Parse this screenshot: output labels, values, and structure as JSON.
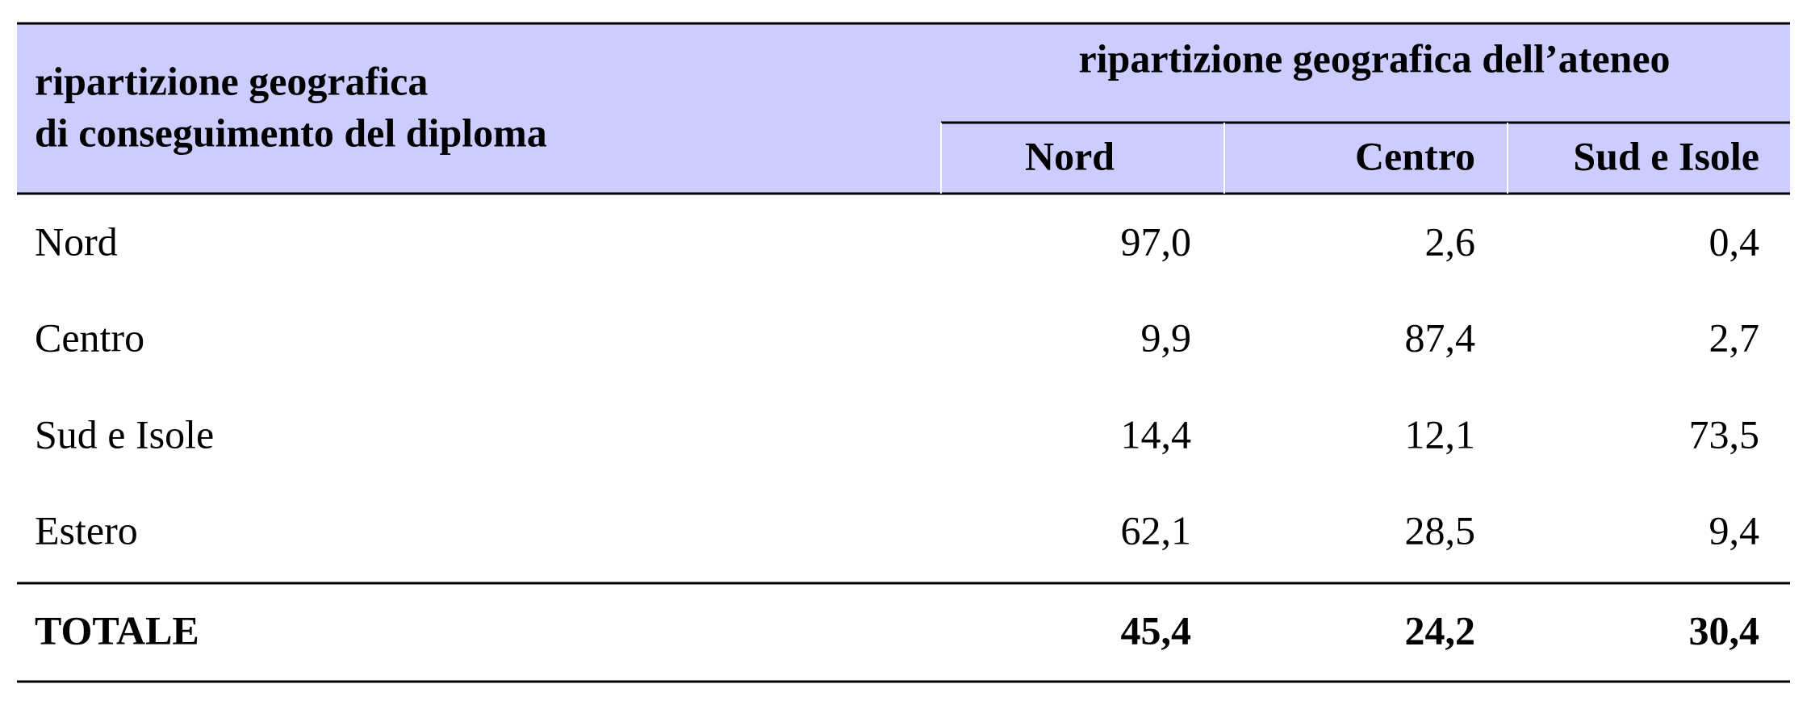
{
  "table": {
    "header": {
      "stub": [
        "ripartizione geografica",
        "di conseguimento del diploma"
      ],
      "group": "ripartizione geografica dell’ateneo",
      "columns": [
        "Nord",
        "Centro",
        "Sud e Isole"
      ]
    },
    "rows": [
      [
        "Nord",
        "97,0",
        "2,6",
        "0,4"
      ],
      [
        "Centro",
        "9,9",
        "87,4",
        "2,7"
      ],
      [
        "Sud e Isole",
        "14,4",
        "12,1",
        "73,5"
      ],
      [
        "Estero",
        "62,1",
        "28,5",
        "9,4"
      ]
    ],
    "total": [
      "TOTALE",
      "45,4",
      "24,2",
      "30,4"
    ]
  }
}
